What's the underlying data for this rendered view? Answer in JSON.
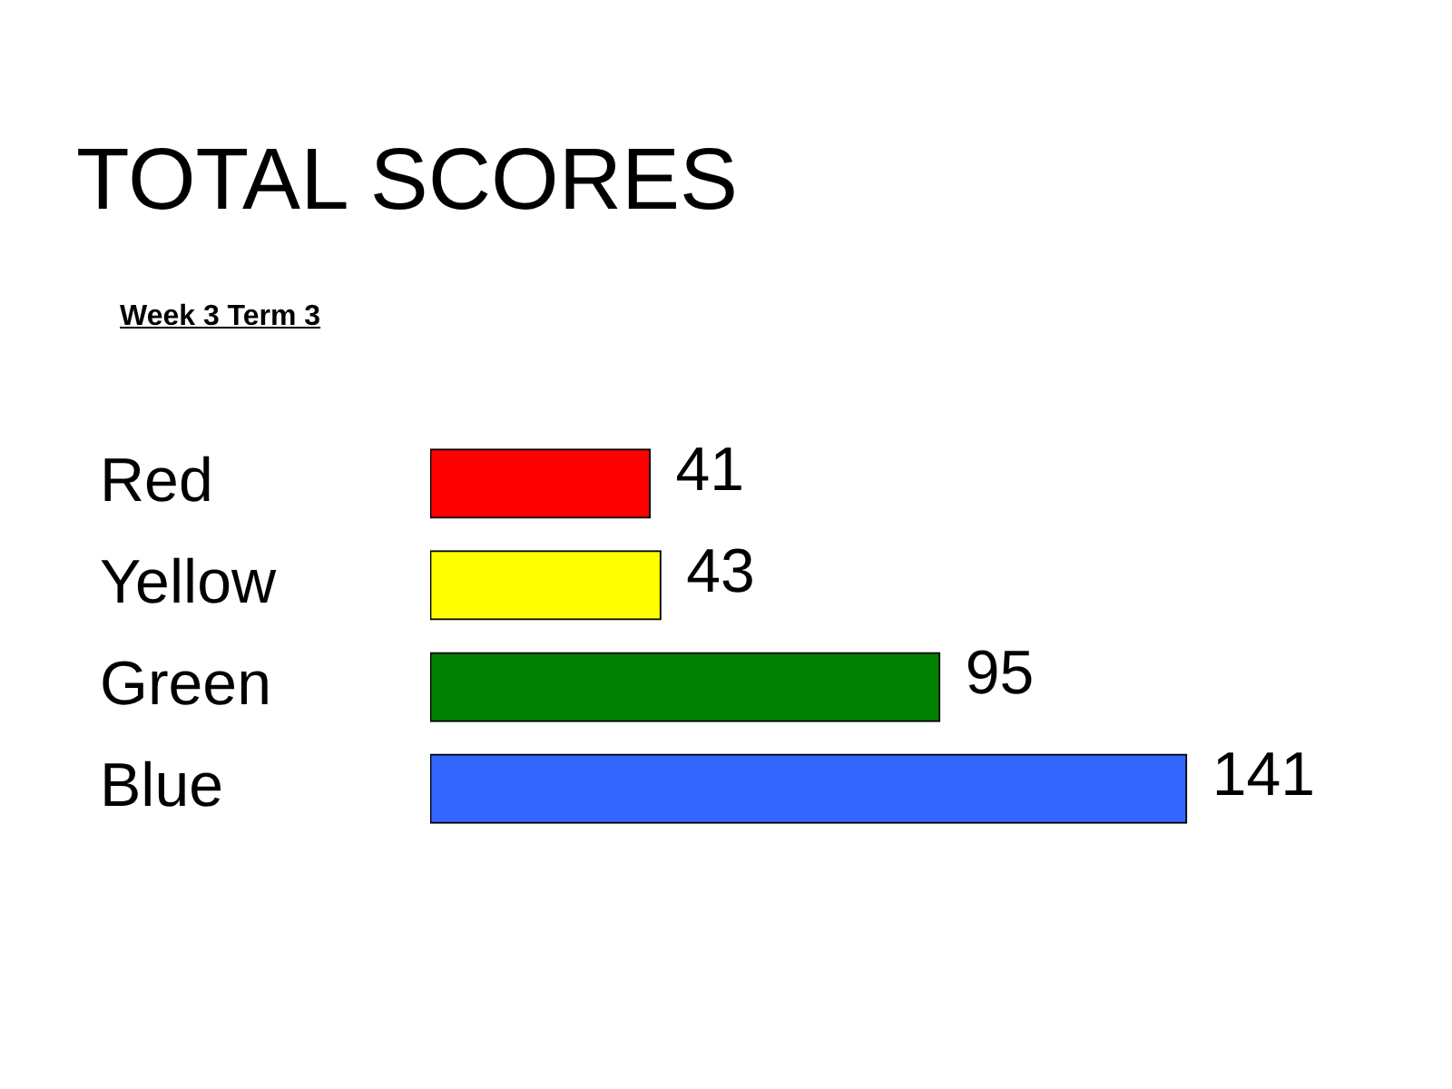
{
  "chart_data": {
    "type": "bar",
    "orientation": "horizontal",
    "title": "TOTAL SCORES",
    "subtitle": "Week 3 Term 3",
    "categories": [
      "Red",
      "Yellow",
      "Green",
      "Blue"
    ],
    "values": [
      41,
      43,
      95,
      141
    ],
    "colors": [
      "#ff0000",
      "#ffff00",
      "#008000",
      "#3366ff"
    ],
    "data_labels": true,
    "legend": false
  }
}
